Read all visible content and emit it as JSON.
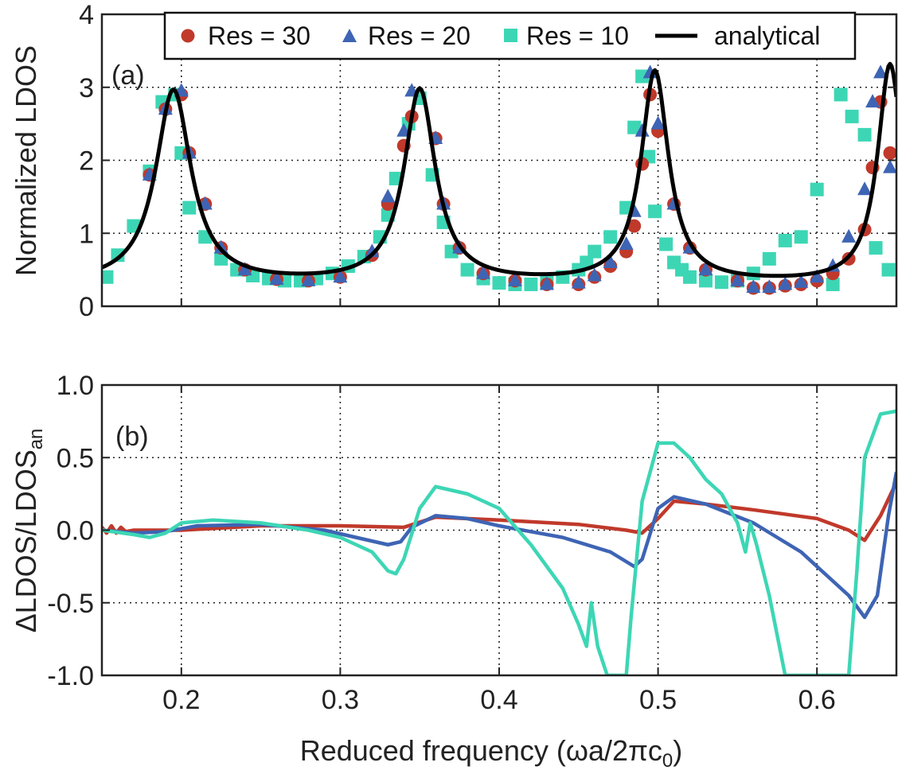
{
  "chart_data": [
    {
      "type": "scatter+line",
      "panel_label": "(a)",
      "ylabel": "Normalized LDOS",
      "xlabel": "",
      "xlim": [
        0.15,
        0.65
      ],
      "ylim": [
        0,
        4
      ],
      "xticks": [
        0.2,
        0.3,
        0.4,
        0.5,
        0.6
      ],
      "yticks": [
        0,
        1,
        2,
        3,
        4
      ],
      "ytick_labels": [
        "0",
        "1",
        "2",
        "3",
        "4"
      ],
      "grid": true,
      "legend_position": "top",
      "legend": [
        {
          "label": "Res = 30",
          "marker": "circle"
        },
        {
          "label": "Res = 20",
          "marker": "triangle"
        },
        {
          "label": "Res = 10",
          "marker": "square"
        },
        {
          "label": "analytical",
          "marker": "line"
        }
      ],
      "analytical_model": {
        "peaks": [
          0.195,
          0.35,
          0.498,
          0.646
        ],
        "heights": [
          2.95,
          2.95,
          3.2,
          3.3
        ],
        "gammas": [
          0.0135,
          0.012,
          0.0105,
          0.0095
        ],
        "baseline": 0.3
      },
      "series": [
        {
          "name": "Res = 30",
          "color": "#c0392b",
          "marker": "circle",
          "x": [
            0.18,
            0.19,
            0.2,
            0.205,
            0.215,
            0.225,
            0.24,
            0.26,
            0.28,
            0.3,
            0.32,
            0.33,
            0.34,
            0.345,
            0.36,
            0.365,
            0.375,
            0.39,
            0.41,
            0.43,
            0.45,
            0.46,
            0.47,
            0.48,
            0.485,
            0.49,
            0.495,
            0.5,
            0.51,
            0.52,
            0.53,
            0.55,
            0.56,
            0.57,
            0.58,
            0.59,
            0.6,
            0.61,
            0.62,
            0.63,
            0.635,
            0.64,
            0.646
          ],
          "y": [
            1.8,
            2.7,
            2.9,
            2.1,
            1.4,
            0.8,
            0.5,
            0.37,
            0.35,
            0.4,
            0.7,
            1.4,
            2.2,
            2.6,
            2.3,
            1.4,
            0.8,
            0.45,
            0.35,
            0.3,
            0.3,
            0.4,
            0.55,
            0.75,
            1.1,
            1.95,
            2.9,
            2.4,
            1.4,
            0.8,
            0.5,
            0.35,
            0.25,
            0.25,
            0.28,
            0.3,
            0.35,
            0.45,
            0.65,
            1.05,
            1.9,
            2.8,
            2.1
          ]
        },
        {
          "name": "Res = 20",
          "color": "#3e64b4",
          "marker": "triangle",
          "x": [
            0.18,
            0.19,
            0.2,
            0.205,
            0.215,
            0.225,
            0.24,
            0.26,
            0.28,
            0.3,
            0.32,
            0.33,
            0.34,
            0.345,
            0.36,
            0.365,
            0.375,
            0.39,
            0.41,
            0.43,
            0.45,
            0.46,
            0.47,
            0.48,
            0.485,
            0.49,
            0.495,
            0.5,
            0.51,
            0.52,
            0.53,
            0.55,
            0.56,
            0.57,
            0.58,
            0.59,
            0.6,
            0.61,
            0.62,
            0.63,
            0.635,
            0.64,
            0.646
          ],
          "y": [
            1.8,
            2.7,
            2.95,
            2.1,
            1.4,
            0.8,
            0.5,
            0.37,
            0.35,
            0.4,
            0.75,
            1.5,
            2.4,
            2.95,
            2.3,
            1.4,
            0.8,
            0.45,
            0.35,
            0.3,
            0.32,
            0.42,
            0.6,
            0.85,
            1.3,
            2.4,
            3.2,
            2.5,
            1.4,
            0.8,
            0.5,
            0.35,
            0.26,
            0.26,
            0.3,
            0.33,
            0.4,
            0.55,
            0.95,
            1.6,
            2.8,
            3.2,
            1.9
          ]
        },
        {
          "name": "Res = 10",
          "color": "#3dd6b5",
          "marker": "square",
          "x": [
            0.153,
            0.16,
            0.17,
            0.18,
            0.188,
            0.196,
            0.2,
            0.205,
            0.215,
            0.225,
            0.235,
            0.245,
            0.255,
            0.265,
            0.275,
            0.285,
            0.295,
            0.305,
            0.315,
            0.325,
            0.33,
            0.335,
            0.343,
            0.35,
            0.358,
            0.365,
            0.37,
            0.38,
            0.39,
            0.4,
            0.41,
            0.42,
            0.43,
            0.44,
            0.45,
            0.455,
            0.46,
            0.47,
            0.48,
            0.485,
            0.49,
            0.494,
            0.498,
            0.505,
            0.51,
            0.515,
            0.52,
            0.53,
            0.54,
            0.55,
            0.56,
            0.57,
            0.58,
            0.59,
            0.6,
            0.61,
            0.615,
            0.622,
            0.63,
            0.637,
            0.645
          ],
          "y": [
            0.4,
            0.7,
            1.1,
            1.85,
            2.8,
            2.9,
            2.1,
            1.35,
            0.95,
            0.65,
            0.5,
            0.42,
            0.38,
            0.35,
            0.35,
            0.38,
            0.45,
            0.55,
            0.68,
            0.95,
            1.25,
            1.75,
            2.5,
            2.85,
            1.8,
            1.15,
            0.75,
            0.5,
            0.38,
            0.32,
            0.3,
            0.3,
            0.33,
            0.4,
            0.5,
            0.6,
            0.75,
            0.95,
            1.35,
            2.45,
            3.15,
            2.05,
            1.3,
            0.85,
            0.6,
            0.5,
            0.4,
            0.35,
            0.33,
            0.35,
            0.45,
            0.65,
            0.9,
            0.95,
            1.6,
            0.3,
            2.9,
            2.6,
            2.35,
            0.8,
            0.5
          ]
        },
        {
          "name": "analytical",
          "color": "#000000",
          "marker": "line"
        }
      ]
    },
    {
      "type": "line",
      "panel_label": "(b)",
      "ylabel": "ΔLDOS/LDOS",
      "ylabel_sub": "an",
      "xlabel": "Reduced frequency (ωa/2πc",
      "xlabel_sub": "0",
      "xlabel_end": ")",
      "xlim": [
        0.15,
        0.65
      ],
      "ylim": [
        -1.0,
        1.0
      ],
      "xticks": [
        0.2,
        0.3,
        0.4,
        0.5,
        0.6
      ],
      "xtick_labels": [
        "0.2",
        "0.3",
        "0.4",
        "0.5",
        "0.6"
      ],
      "yticks": [
        -1.0,
        -0.5,
        0.0,
        0.5,
        1.0
      ],
      "ytick_labels": [
        "-1.0",
        "-0.5",
        "0.0",
        "0.5",
        "1.0"
      ],
      "grid": true,
      "series": [
        {
          "name": "Res = 30",
          "color": "#c0392b",
          "x": [
            0.15,
            0.153,
            0.156,
            0.159,
            0.162,
            0.165,
            0.17,
            0.2,
            0.25,
            0.3,
            0.34,
            0.36,
            0.4,
            0.45,
            0.48,
            0.49,
            0.5,
            0.51,
            0.53,
            0.56,
            0.6,
            0.62,
            0.63,
            0.64,
            0.65
          ],
          "y": [
            0.02,
            -0.02,
            0.03,
            -0.02,
            0.02,
            -0.01,
            0.0,
            0.0,
            0.03,
            0.03,
            0.02,
            0.09,
            0.07,
            0.04,
            0.0,
            -0.02,
            0.08,
            0.2,
            0.18,
            0.14,
            0.08,
            0.0,
            -0.07,
            0.1,
            0.33
          ]
        },
        {
          "name": "Res = 20",
          "color": "#3e64b4",
          "x": [
            0.15,
            0.17,
            0.19,
            0.21,
            0.25,
            0.29,
            0.31,
            0.33,
            0.338,
            0.345,
            0.36,
            0.38,
            0.4,
            0.44,
            0.47,
            0.485,
            0.49,
            0.5,
            0.51,
            0.53,
            0.56,
            0.59,
            0.61,
            0.62,
            0.63,
            0.638,
            0.645,
            0.65
          ],
          "y": [
            0.0,
            -0.02,
            -0.01,
            0.03,
            0.04,
            0.0,
            -0.05,
            -0.1,
            -0.08,
            0.02,
            0.1,
            0.08,
            0.03,
            -0.05,
            -0.15,
            -0.25,
            -0.2,
            0.15,
            0.23,
            0.18,
            0.05,
            -0.15,
            -0.35,
            -0.45,
            -0.6,
            -0.45,
            0.1,
            0.4
          ]
        },
        {
          "name": "Res = 10",
          "color": "#3dd6b5",
          "x": [
            0.15,
            0.17,
            0.18,
            0.19,
            0.2,
            0.22,
            0.25,
            0.28,
            0.3,
            0.31,
            0.32,
            0.33,
            0.335,
            0.34,
            0.35,
            0.36,
            0.38,
            0.4,
            0.42,
            0.44,
            0.45,
            0.455,
            0.458,
            0.462,
            0.468,
            0.48,
            0.483,
            0.49,
            0.5,
            0.51,
            0.52,
            0.53,
            0.54,
            0.55,
            0.555,
            0.558,
            0.562,
            0.57,
            0.58,
            0.62,
            0.625,
            0.63,
            0.64,
            0.65
          ],
          "y": [
            0.0,
            -0.03,
            -0.05,
            -0.02,
            0.05,
            0.07,
            0.05,
            0.0,
            -0.05,
            -0.1,
            -0.15,
            -0.28,
            -0.3,
            -0.2,
            0.15,
            0.3,
            0.25,
            0.15,
            -0.1,
            -0.4,
            -0.65,
            -0.8,
            -0.5,
            -0.8,
            -1.0,
            -1.0,
            -0.6,
            0.2,
            0.6,
            0.6,
            0.5,
            0.35,
            0.25,
            0.05,
            -0.15,
            0.05,
            -0.1,
            -0.45,
            -1.0,
            -1.0,
            -0.3,
            0.5,
            0.8,
            0.82
          ]
        }
      ]
    }
  ]
}
